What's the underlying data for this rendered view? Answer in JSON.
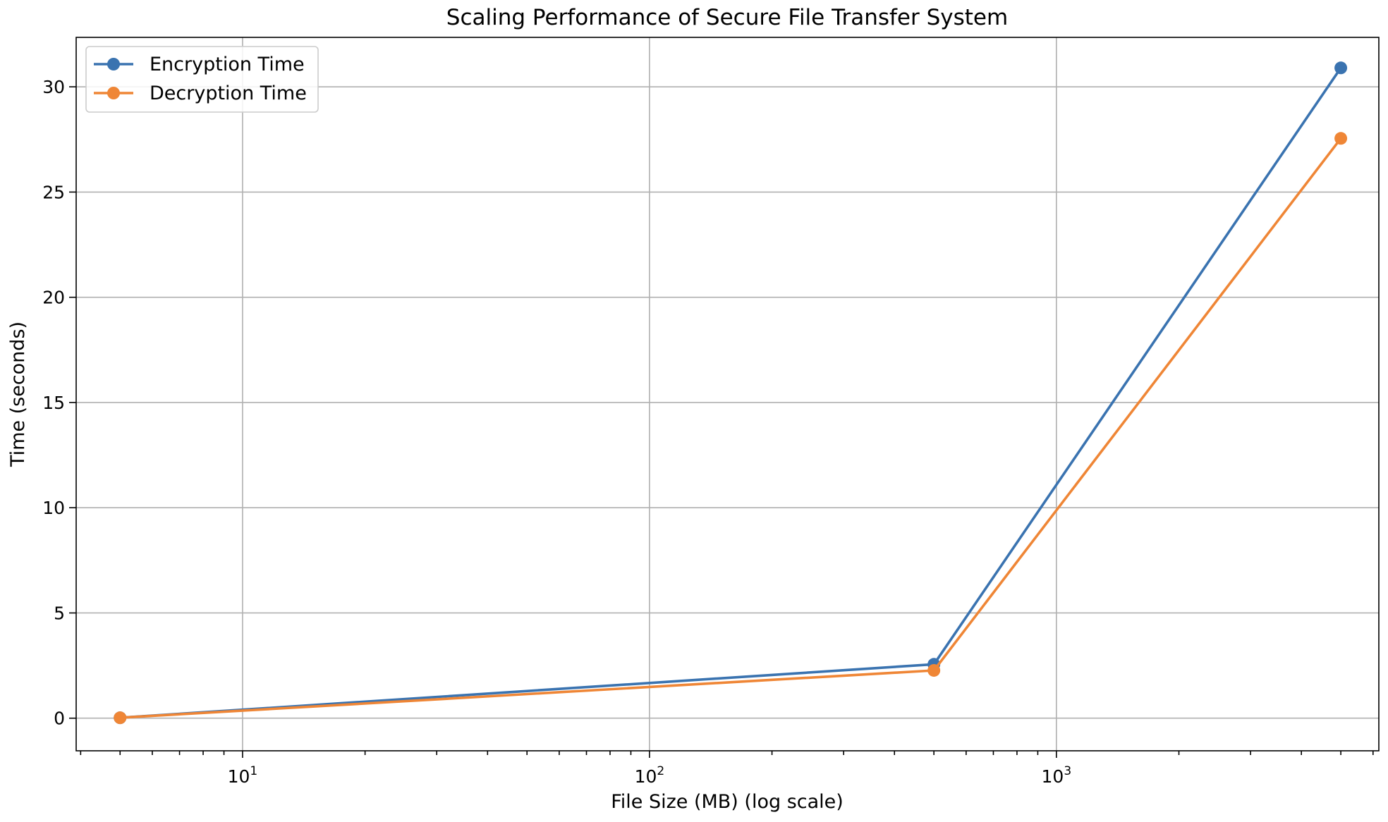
{
  "chart_data": {
    "type": "line",
    "title": "Scaling Performance of Secure File Transfer System",
    "xlabel": "File Size (MB) (log scale)",
    "ylabel": "Time (seconds)",
    "xscale": "log",
    "xlim": [
      3.9,
      6200
    ],
    "ylim": [
      -1.55,
      32.35
    ],
    "xticks": [
      {
        "base": "10",
        "exp": "1",
        "value": 10
      },
      {
        "base": "10",
        "exp": "2",
        "value": 100
      },
      {
        "base": "10",
        "exp": "3",
        "value": 1000
      }
    ],
    "yticks": [
      0,
      5,
      10,
      15,
      20,
      25,
      30
    ],
    "grid": true,
    "legend_position": "top-left",
    "x": [
      5,
      500,
      5000
    ],
    "series": [
      {
        "name": "Encryption Time",
        "values": [
          0.02,
          2.56,
          30.9
        ],
        "color": "#3a73b0"
      },
      {
        "name": "Decryption Time",
        "values": [
          0.02,
          2.27,
          27.55
        ],
        "color": "#ef8636"
      }
    ]
  }
}
